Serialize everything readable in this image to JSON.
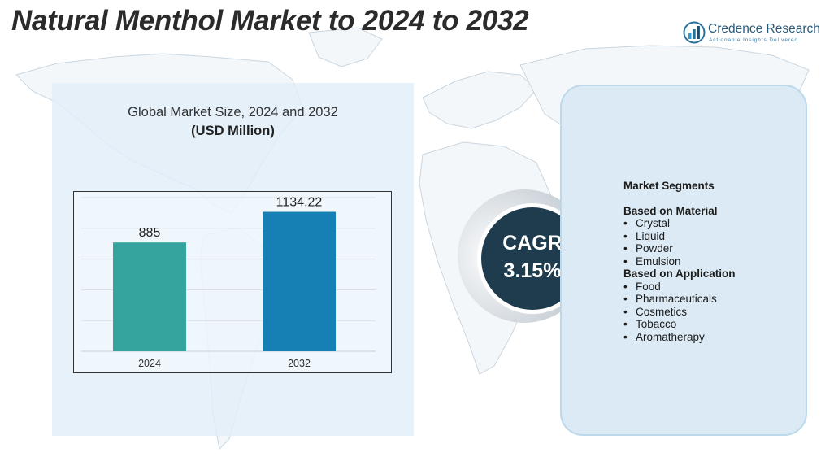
{
  "title": "Natural Menthol Market to 2024 to 2032",
  "logo": {
    "name": "Credence Research",
    "tagline": "Actionable Insights Delivered",
    "icon": "bar-chart-logo-icon",
    "color": "#2a5a7a"
  },
  "chart_data": {
    "type": "bar",
    "title": "Global Market Size,  2024 and 2032",
    "subtitle": "(USD Million)",
    "categories": [
      "2024",
      "2032"
    ],
    "values": [
      885,
      1134.22
    ],
    "colors": [
      "#35a39e",
      "#1680b5"
    ],
    "ylim": [
      0,
      1250
    ],
    "grid": true,
    "legend": "none"
  },
  "cagr": {
    "label": "CAGR",
    "value": "3.15%",
    "color": "#1e3c4e"
  },
  "segments": {
    "heading": "Market Segments",
    "groups": [
      {
        "title": "Based on Material",
        "items": [
          "Crystal",
          "Liquid",
          "Powder",
          "Emulsion"
        ]
      },
      {
        "title": "Based on Application",
        "items": [
          "Food",
          "Pharmaceuticals",
          "Cosmetics",
          "Tobacco",
          "Aromatherapy"
        ]
      }
    ]
  }
}
